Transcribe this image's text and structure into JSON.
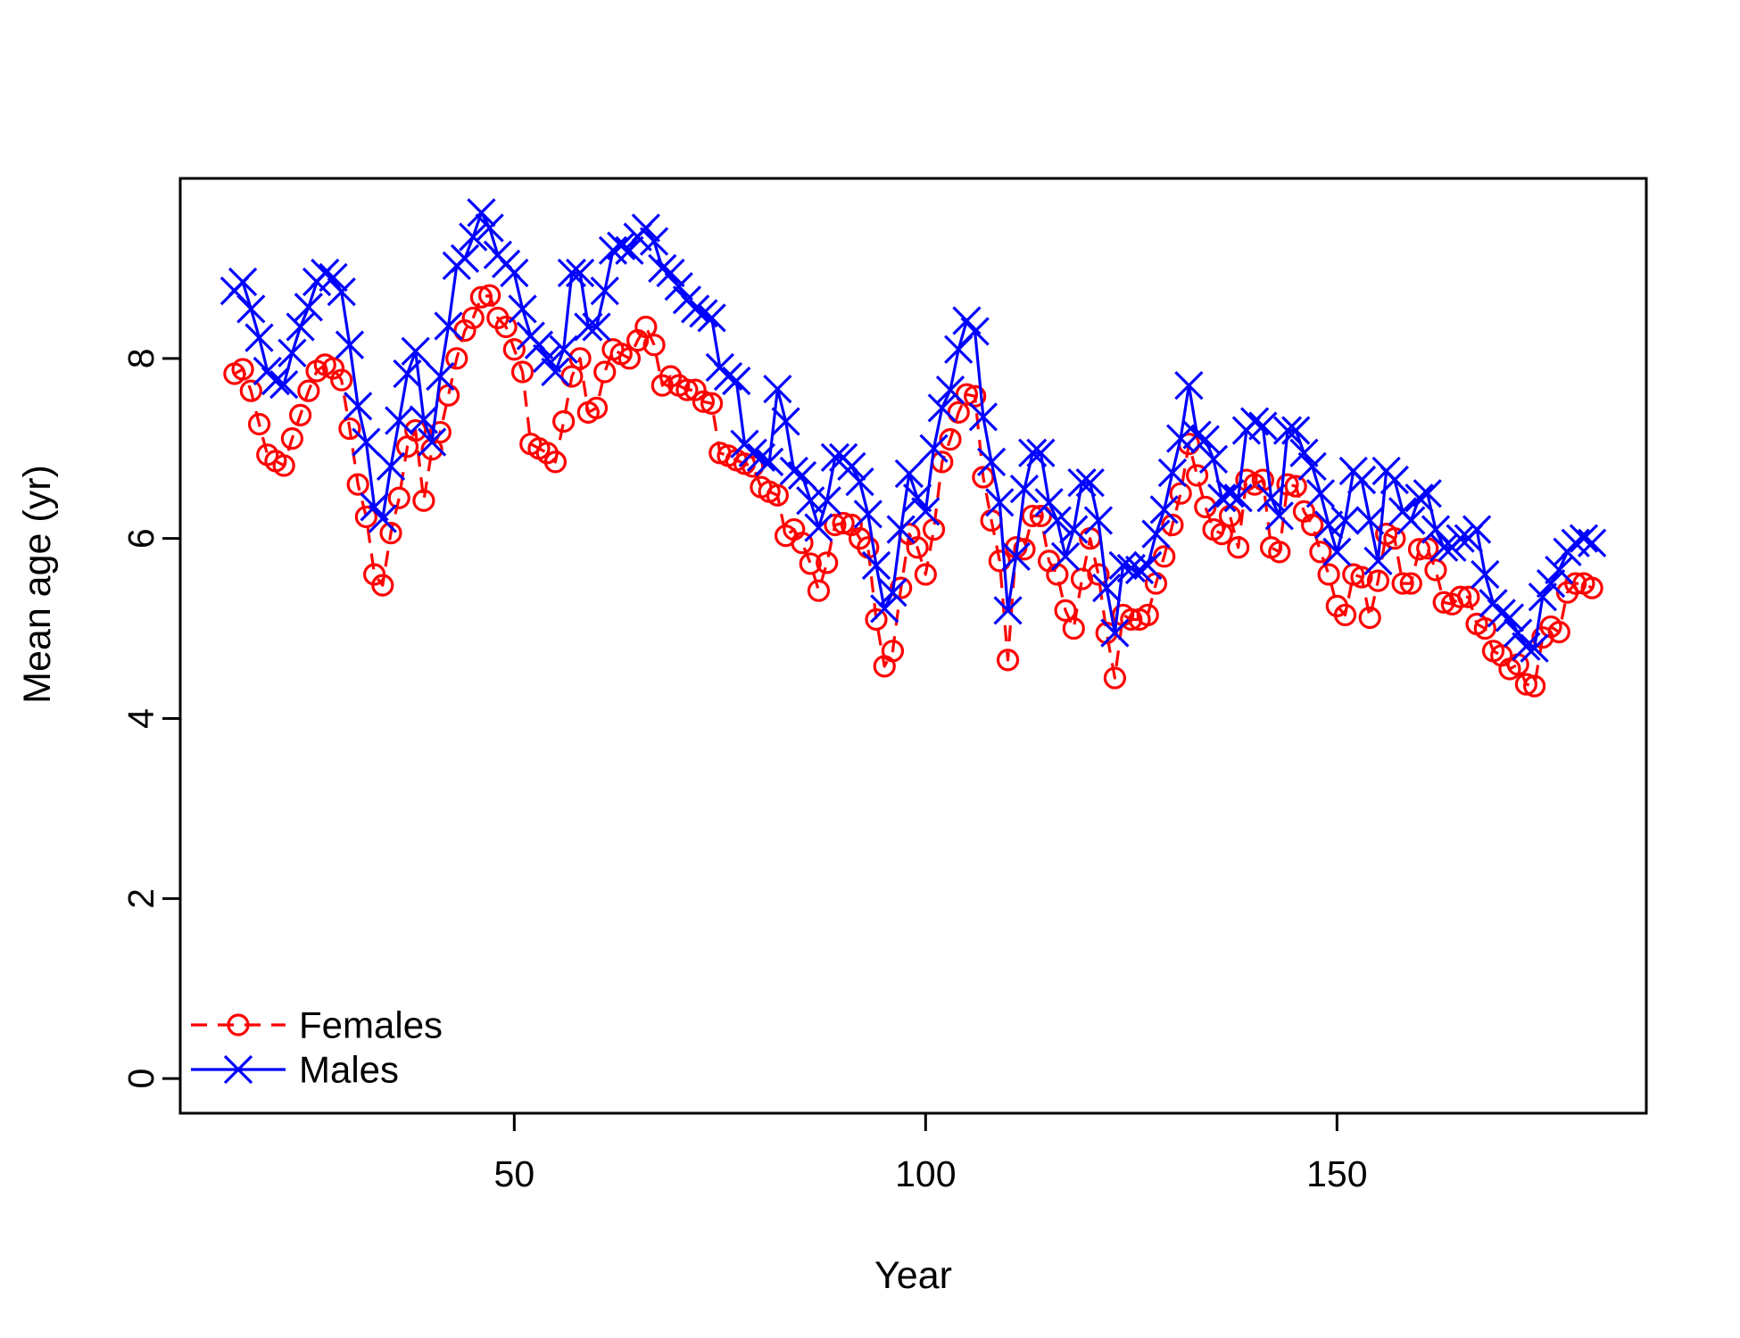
{
  "figure": {
    "background": "#ffffff",
    "axis_color": "#000000",
    "text_color": "#000000"
  },
  "chart_data": {
    "type": "line",
    "title": "",
    "xlabel": "Year",
    "ylabel": "Mean age (yr)",
    "x_ticks": [
      50,
      100,
      150
    ],
    "y_ticks": [
      0,
      2,
      4,
      6,
      8
    ],
    "xlim": [
      9.4,
      187.6
    ],
    "ylim": [
      -0.385,
      10.0
    ],
    "grid": false,
    "legend_position": "bottom-left",
    "x": [
      16,
      17,
      18,
      19,
      20,
      21,
      22,
      23,
      24,
      25,
      26,
      27,
      28,
      29,
      30,
      31,
      32,
      33,
      34,
      35,
      36,
      37,
      38,
      39,
      40,
      41,
      42,
      43,
      44,
      45,
      46,
      47,
      48,
      49,
      50,
      51,
      52,
      53,
      54,
      55,
      56,
      57,
      58,
      59,
      60,
      61,
      62,
      63,
      64,
      65,
      66,
      67,
      68,
      69,
      70,
      71,
      72,
      73,
      74,
      75,
      76,
      77,
      78,
      79,
      80,
      81,
      82,
      83,
      84,
      85,
      86,
      87,
      88,
      89,
      90,
      91,
      92,
      93,
      94,
      95,
      96,
      97,
      98,
      99,
      100,
      101,
      102,
      103,
      104,
      105,
      106,
      107,
      108,
      109,
      110,
      111,
      112,
      113,
      114,
      115,
      116,
      117,
      118,
      119,
      120,
      121,
      122,
      123,
      124,
      125,
      126,
      127,
      128,
      129,
      130,
      131,
      132,
      133,
      134,
      135,
      136,
      137,
      138,
      139,
      140,
      141,
      142,
      143,
      144,
      145,
      146,
      147,
      148,
      149,
      150,
      151,
      152,
      153,
      154,
      155,
      156,
      157,
      158,
      159,
      160,
      161,
      162,
      163,
      164,
      165,
      166,
      167,
      168,
      169,
      170,
      171,
      172,
      173,
      174,
      175,
      176,
      177,
      178,
      179,
      180,
      181
    ],
    "series": [
      {
        "name": "Females",
        "color": "#ff0000",
        "line_style": "dashed",
        "marker": "circle",
        "values": [
          7.83,
          7.88,
          7.64,
          7.27,
          6.93,
          6.86,
          6.81,
          7.11,
          7.37,
          7.64,
          7.86,
          7.93,
          7.89,
          7.76,
          7.22,
          6.6,
          6.24,
          5.6,
          5.48,
          6.06,
          6.45,
          7.02,
          7.2,
          6.42,
          6.99,
          7.18,
          7.59,
          8.0,
          8.31,
          8.45,
          8.68,
          8.7,
          8.45,
          8.35,
          8.1,
          7.85,
          7.05,
          7.0,
          6.95,
          6.85,
          7.3,
          7.8,
          8.0,
          7.4,
          7.45,
          7.85,
          8.1,
          8.05,
          8.0,
          8.2,
          8.35,
          8.15,
          7.7,
          7.8,
          7.7,
          7.65,
          7.65,
          7.52,
          7.5,
          6.95,
          6.92,
          6.87,
          6.83,
          6.8,
          6.57,
          6.52,
          6.48,
          6.03,
          6.1,
          5.95,
          5.72,
          5.42,
          5.73,
          6.15,
          6.17,
          6.15,
          6.0,
          5.9,
          5.1,
          4.58,
          4.75,
          5.45,
          6.05,
          5.9,
          5.6,
          6.1,
          6.85,
          7.1,
          7.4,
          7.6,
          7.58,
          6.68,
          6.2,
          5.75,
          4.65,
          5.9,
          5.88,
          6.25,
          6.25,
          5.75,
          5.6,
          5.2,
          5.0,
          5.55,
          6.0,
          5.6,
          4.95,
          4.45,
          5.15,
          5.1,
          5.1,
          5.15,
          5.5,
          5.8,
          6.15,
          6.5,
          7.05,
          6.7,
          6.35,
          6.1,
          6.05,
          6.25,
          5.9,
          6.65,
          6.6,
          6.65,
          5.9,
          5.85,
          6.6,
          6.58,
          6.3,
          6.15,
          5.85,
          5.6,
          5.25,
          5.15,
          5.6,
          5.57,
          5.12,
          5.53,
          6.05,
          6.0,
          5.5,
          5.5,
          5.88,
          5.89,
          5.65,
          5.29,
          5.27,
          5.35,
          5.35,
          5.05,
          5.0,
          4.75,
          4.7,
          4.55,
          4.6,
          4.38,
          4.36,
          4.9,
          5.02,
          4.96,
          5.4,
          5.5,
          5.5,
          5.45
        ]
      },
      {
        "name": "Males",
        "color": "#0000ff",
        "line_style": "solid",
        "marker": "x",
        "values": [
          8.75,
          8.85,
          8.55,
          8.23,
          7.86,
          7.75,
          7.71,
          8.06,
          8.35,
          8.57,
          8.85,
          8.95,
          8.9,
          8.74,
          8.15,
          7.47,
          7.07,
          6.35,
          6.22,
          6.8,
          7.31,
          7.83,
          8.08,
          7.32,
          7.07,
          7.8,
          8.36,
          9.03,
          9.11,
          9.35,
          9.62,
          9.45,
          9.15,
          9.05,
          8.95,
          8.55,
          8.25,
          8.15,
          8.0,
          7.85,
          8.1,
          8.95,
          8.95,
          8.35,
          8.35,
          8.75,
          9.2,
          9.25,
          9.2,
          9.35,
          9.45,
          9.3,
          9.0,
          8.95,
          8.8,
          8.65,
          8.55,
          8.5,
          8.45,
          7.9,
          7.8,
          7.75,
          7.05,
          6.95,
          6.9,
          6.85,
          7.66,
          7.3,
          6.75,
          6.7,
          6.42,
          6.12,
          6.42,
          6.9,
          6.9,
          6.8,
          6.63,
          6.27,
          5.7,
          5.22,
          5.4,
          6.1,
          6.72,
          6.45,
          6.3,
          7.0,
          7.45,
          7.65,
          8.1,
          8.42,
          8.3,
          7.35,
          6.85,
          6.4,
          5.2,
          5.8,
          6.55,
          6.95,
          6.95,
          6.4,
          6.2,
          5.8,
          6.1,
          6.62,
          6.62,
          6.2,
          5.45,
          4.95,
          5.7,
          5.67,
          5.65,
          5.7,
          6.05,
          6.32,
          6.73,
          7.11,
          7.7,
          7.15,
          7.1,
          6.88,
          6.45,
          6.5,
          6.45,
          7.2,
          7.3,
          7.25,
          6.45,
          6.25,
          7.2,
          7.2,
          6.95,
          6.8,
          6.5,
          6.15,
          5.85,
          6.2,
          6.75,
          6.65,
          6.2,
          5.75,
          6.75,
          6.65,
          6.3,
          6.2,
          6.45,
          6.5,
          6.1,
          5.9,
          5.9,
          6.0,
          6.0,
          6.1,
          5.6,
          5.28,
          5.17,
          5.12,
          4.95,
          4.8,
          4.78,
          5.35,
          5.5,
          5.65,
          5.85,
          5.95,
          6.0,
          5.95
        ]
      }
    ]
  },
  "legend": {
    "items": [
      {
        "label": "Females"
      },
      {
        "label": "Males"
      }
    ]
  }
}
